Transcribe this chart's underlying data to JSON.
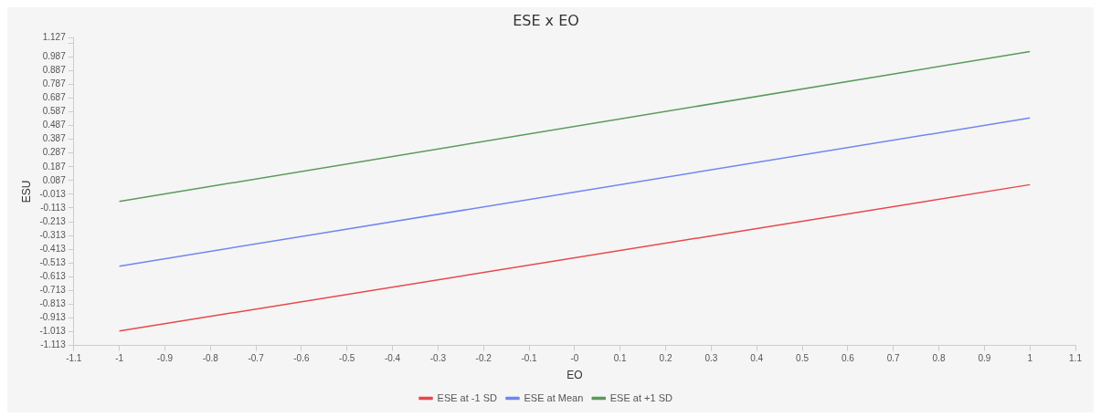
{
  "chart_data": {
    "type": "line",
    "title": "ESE x EO",
    "xlabel": "EO",
    "ylabel": "ESU",
    "x": [
      -1,
      1
    ],
    "series": [
      {
        "name": "ESE at -1 SD",
        "color": "#e8474b",
        "values": [
          -1.008,
          0.057
        ]
      },
      {
        "name": "ESE at Mean",
        "color": "#6f86f0",
        "values": [
          -0.536,
          0.542
        ]
      },
      {
        "name": "ESE at +1 SD",
        "color": "#5a9a5a",
        "values": [
          -0.065,
          1.026
        ]
      }
    ],
    "xlim": [
      -1.1,
      1.1
    ],
    "xticks": [
      -1.1,
      -1,
      -0.9,
      -0.8,
      -0.7,
      -0.6,
      -0.5,
      -0.4,
      -0.3,
      -0.2,
      -0.1,
      {
        "value": 0,
        "label": "-0"
      },
      0.1,
      0.2,
      0.3,
      0.4,
      0.5,
      0.6,
      0.7,
      0.8,
      0.9,
      1,
      1.1
    ],
    "ylim": [
      -1.113,
      1.127
    ],
    "yticks": [
      -1.113,
      -1.013,
      -0.913,
      -0.813,
      -0.713,
      -0.613,
      -0.513,
      -0.413,
      -0.313,
      -0.213,
      -0.113,
      -0.013,
      0.087,
      0.187,
      0.287,
      0.387,
      0.487,
      0.587,
      0.687,
      0.787,
      0.887,
      0.987,
      {
        "value": 1.087,
        "label": null
      },
      1.127
    ],
    "grid": false,
    "legend": "bottom",
    "marker": "none",
    "line_style": "solid"
  }
}
